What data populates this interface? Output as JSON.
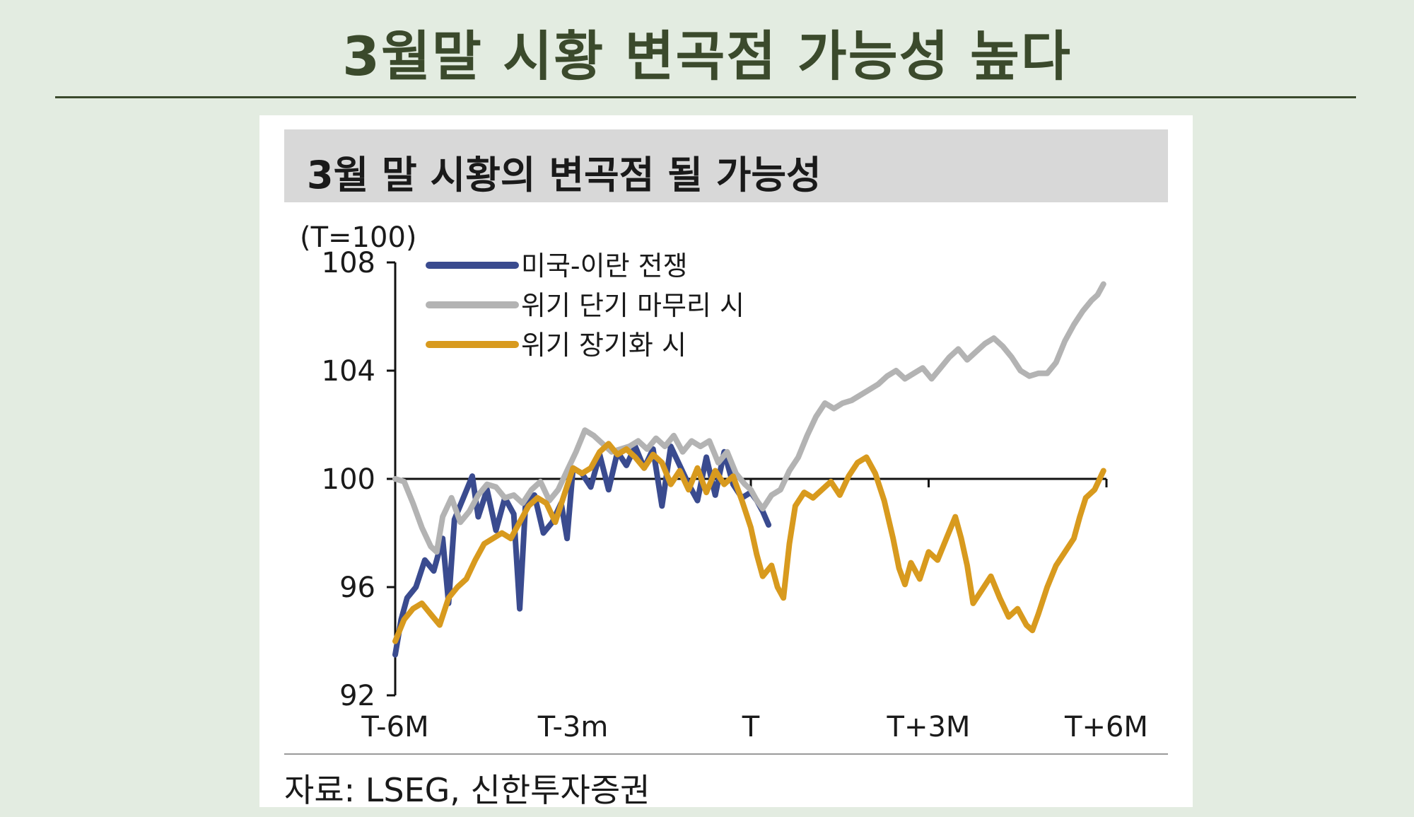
{
  "slide_title": "3월말 시황 변곡점 가능성 높다",
  "chart_title": "3월 말 시황의 변곡점 될 가능성",
  "source": "자료: LSEG, 신한투자증권",
  "colors": {
    "war": "#3a4b8f",
    "short": "#b3b3b3",
    "long": "#d89a1e"
  },
  "chart_data": {
    "type": "line",
    "title": "3월 말 시황의 변곡점 될 가능성",
    "unit_label": "(T=100)",
    "ylim": [
      92,
      108
    ],
    "yticks": [
      92,
      96,
      100,
      104,
      108
    ],
    "x_ticks": [
      "T-6M",
      "T-3m",
      "T",
      "T+3M",
      "T+6M"
    ],
    "x_range": [
      -6,
      6
    ],
    "reference_line": 100,
    "legend_position": "top-left",
    "grid": false,
    "series": [
      {
        "name": "미국-이란 전쟁",
        "color": "#3a4b8f",
        "points": [
          [
            -6,
            93.5
          ],
          [
            -5.9,
            94.8
          ],
          [
            -5.8,
            95.6
          ],
          [
            -5.65,
            96.0
          ],
          [
            -5.5,
            97.0
          ],
          [
            -5.35,
            96.6
          ],
          [
            -5.2,
            97.8
          ],
          [
            -5.1,
            95.4
          ],
          [
            -5.0,
            98.5
          ],
          [
            -4.85,
            99.3
          ],
          [
            -4.7,
            100.1
          ],
          [
            -4.6,
            98.6
          ],
          [
            -4.45,
            99.6
          ],
          [
            -4.3,
            98.1
          ],
          [
            -4.15,
            99.3
          ],
          [
            -4.0,
            98.7
          ],
          [
            -3.9,
            95.2
          ],
          [
            -3.8,
            99.1
          ],
          [
            -3.65,
            99.4
          ],
          [
            -3.5,
            98.0
          ],
          [
            -3.35,
            98.4
          ],
          [
            -3.2,
            99.1
          ],
          [
            -3.1,
            97.8
          ],
          [
            -3.0,
            100.4
          ],
          [
            -2.85,
            100.2
          ],
          [
            -2.7,
            99.7
          ],
          [
            -2.55,
            100.9
          ],
          [
            -2.4,
            99.6
          ],
          [
            -2.25,
            101.0
          ],
          [
            -2.1,
            100.5
          ],
          [
            -1.95,
            101.2
          ],
          [
            -1.8,
            100.4
          ],
          [
            -1.65,
            101.1
          ],
          [
            -1.5,
            99.0
          ],
          [
            -1.35,
            101.2
          ],
          [
            -1.2,
            100.5
          ],
          [
            -1.05,
            99.8
          ],
          [
            -0.9,
            99.2
          ],
          [
            -0.75,
            100.8
          ],
          [
            -0.6,
            99.4
          ],
          [
            -0.45,
            101.0
          ],
          [
            -0.3,
            99.8
          ],
          [
            -0.15,
            99.3
          ],
          [
            0.0,
            99.5
          ],
          [
            0.1,
            99.2
          ],
          [
            0.2,
            98.8
          ],
          [
            0.3,
            98.3
          ]
        ]
      },
      {
        "name": "위기 단기 마무리 시",
        "color": "#b3b3b3",
        "points": [
          [
            -6,
            100.0
          ],
          [
            -5.85,
            99.9
          ],
          [
            -5.7,
            99.1
          ],
          [
            -5.55,
            98.2
          ],
          [
            -5.4,
            97.5
          ],
          [
            -5.3,
            97.3
          ],
          [
            -5.2,
            98.6
          ],
          [
            -5.05,
            99.3
          ],
          [
            -4.9,
            98.4
          ],
          [
            -4.75,
            98.8
          ],
          [
            -4.6,
            99.4
          ],
          [
            -4.45,
            99.8
          ],
          [
            -4.3,
            99.7
          ],
          [
            -4.15,
            99.3
          ],
          [
            -4.0,
            99.4
          ],
          [
            -3.85,
            99.1
          ],
          [
            -3.7,
            99.6
          ],
          [
            -3.55,
            99.9
          ],
          [
            -3.4,
            99.2
          ],
          [
            -3.25,
            99.6
          ],
          [
            -3.1,
            100.3
          ],
          [
            -2.95,
            101.0
          ],
          [
            -2.8,
            101.8
          ],
          [
            -2.65,
            101.6
          ],
          [
            -2.5,
            101.3
          ],
          [
            -2.35,
            101.0
          ],
          [
            -2.2,
            101.1
          ],
          [
            -2.05,
            101.2
          ],
          [
            -1.9,
            101.4
          ],
          [
            -1.75,
            101.1
          ],
          [
            -1.6,
            101.5
          ],
          [
            -1.45,
            101.2
          ],
          [
            -1.3,
            101.6
          ],
          [
            -1.15,
            101.0
          ],
          [
            -1.0,
            101.4
          ],
          [
            -0.85,
            101.2
          ],
          [
            -0.7,
            101.4
          ],
          [
            -0.55,
            100.6
          ],
          [
            -0.4,
            101.0
          ],
          [
            -0.25,
            100.2
          ],
          [
            -0.1,
            99.8
          ],
          [
            0.0,
            99.6
          ],
          [
            0.1,
            99.2
          ],
          [
            0.2,
            98.9
          ],
          [
            0.35,
            99.4
          ],
          [
            0.5,
            99.6
          ],
          [
            0.65,
            100.3
          ],
          [
            0.8,
            100.8
          ],
          [
            0.95,
            101.6
          ],
          [
            1.1,
            102.3
          ],
          [
            1.25,
            102.8
          ],
          [
            1.4,
            102.6
          ],
          [
            1.55,
            102.8
          ],
          [
            1.7,
            102.9
          ],
          [
            1.85,
            103.1
          ],
          [
            2.0,
            103.3
          ],
          [
            2.15,
            103.5
          ],
          [
            2.3,
            103.8
          ],
          [
            2.45,
            104.0
          ],
          [
            2.6,
            103.7
          ],
          [
            2.75,
            103.9
          ],
          [
            2.9,
            104.1
          ],
          [
            3.05,
            103.7
          ],
          [
            3.2,
            104.1
          ],
          [
            3.35,
            104.5
          ],
          [
            3.5,
            104.8
          ],
          [
            3.65,
            104.4
          ],
          [
            3.8,
            104.7
          ],
          [
            3.95,
            105.0
          ],
          [
            4.1,
            105.2
          ],
          [
            4.25,
            104.9
          ],
          [
            4.4,
            104.5
          ],
          [
            4.55,
            104.0
          ],
          [
            4.7,
            103.8
          ],
          [
            4.85,
            103.9
          ],
          [
            5.0,
            103.9
          ],
          [
            5.15,
            104.3
          ],
          [
            5.3,
            105.1
          ],
          [
            5.45,
            105.7
          ],
          [
            5.6,
            106.2
          ],
          [
            5.75,
            106.6
          ],
          [
            5.85,
            106.8
          ],
          [
            5.95,
            107.2
          ]
        ]
      },
      {
        "name": "위기 장기화 시",
        "color": "#d89a1e",
        "points": [
          [
            -6,
            94.0
          ],
          [
            -5.85,
            94.8
          ],
          [
            -5.7,
            95.2
          ],
          [
            -5.55,
            95.4
          ],
          [
            -5.4,
            95.0
          ],
          [
            -5.25,
            94.6
          ],
          [
            -5.1,
            95.6
          ],
          [
            -4.95,
            96.0
          ],
          [
            -4.8,
            96.3
          ],
          [
            -4.65,
            97.0
          ],
          [
            -4.5,
            97.6
          ],
          [
            -4.35,
            97.8
          ],
          [
            -4.2,
            98.0
          ],
          [
            -4.05,
            97.8
          ],
          [
            -3.9,
            98.4
          ],
          [
            -3.75,
            99.0
          ],
          [
            -3.6,
            99.3
          ],
          [
            -3.45,
            99.1
          ],
          [
            -3.3,
            98.4
          ],
          [
            -3.15,
            99.4
          ],
          [
            -3.0,
            100.4
          ],
          [
            -2.85,
            100.2
          ],
          [
            -2.7,
            100.4
          ],
          [
            -2.55,
            101.0
          ],
          [
            -2.4,
            101.3
          ],
          [
            -2.25,
            100.9
          ],
          [
            -2.1,
            101.1
          ],
          [
            -1.95,
            100.8
          ],
          [
            -1.8,
            100.4
          ],
          [
            -1.65,
            100.9
          ],
          [
            -1.5,
            100.6
          ],
          [
            -1.35,
            99.8
          ],
          [
            -1.2,
            100.3
          ],
          [
            -1.05,
            99.6
          ],
          [
            -0.9,
            100.4
          ],
          [
            -0.75,
            99.5
          ],
          [
            -0.6,
            100.3
          ],
          [
            -0.45,
            99.8
          ],
          [
            -0.3,
            100.1
          ],
          [
            -0.15,
            99.2
          ],
          [
            0.0,
            98.2
          ],
          [
            0.1,
            97.2
          ],
          [
            0.2,
            96.4
          ],
          [
            0.35,
            96.8
          ],
          [
            0.45,
            96.0
          ],
          [
            0.55,
            95.6
          ],
          [
            0.65,
            97.6
          ],
          [
            0.75,
            99.0
          ],
          [
            0.9,
            99.5
          ],
          [
            1.05,
            99.3
          ],
          [
            1.2,
            99.6
          ],
          [
            1.35,
            99.9
          ],
          [
            1.5,
            99.4
          ],
          [
            1.65,
            100.1
          ],
          [
            1.8,
            100.6
          ],
          [
            1.95,
            100.8
          ],
          [
            2.1,
            100.2
          ],
          [
            2.25,
            99.2
          ],
          [
            2.4,
            97.8
          ],
          [
            2.5,
            96.7
          ],
          [
            2.6,
            96.1
          ],
          [
            2.7,
            96.9
          ],
          [
            2.85,
            96.3
          ],
          [
            3.0,
            97.3
          ],
          [
            3.15,
            97.0
          ],
          [
            3.3,
            97.8
          ],
          [
            3.45,
            98.6
          ],
          [
            3.55,
            97.8
          ],
          [
            3.65,
            96.8
          ],
          [
            3.75,
            95.4
          ],
          [
            3.9,
            95.9
          ],
          [
            4.05,
            96.4
          ],
          [
            4.2,
            95.6
          ],
          [
            4.35,
            94.9
          ],
          [
            4.5,
            95.2
          ],
          [
            4.65,
            94.6
          ],
          [
            4.75,
            94.4
          ],
          [
            4.85,
            95.0
          ],
          [
            5.0,
            96.0
          ],
          [
            5.15,
            96.8
          ],
          [
            5.3,
            97.3
          ],
          [
            5.45,
            97.8
          ],
          [
            5.55,
            98.6
          ],
          [
            5.65,
            99.3
          ],
          [
            5.8,
            99.6
          ],
          [
            5.95,
            100.3
          ]
        ]
      }
    ]
  }
}
